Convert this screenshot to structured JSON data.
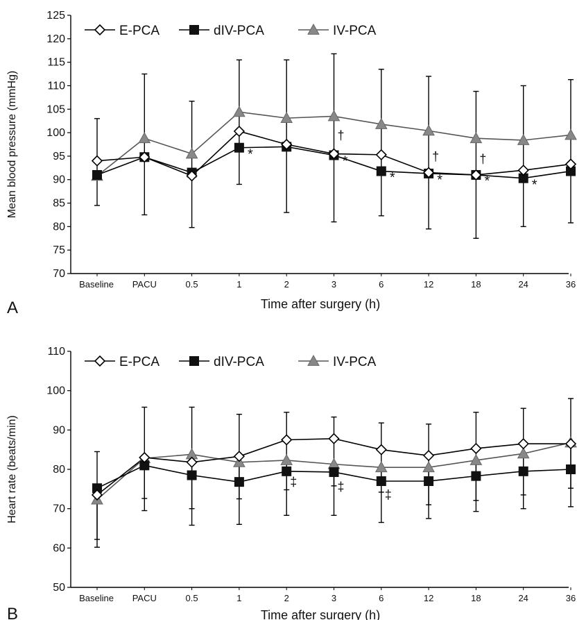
{
  "chart_data": [
    {
      "panel_label": "A",
      "type": "line",
      "xlabel": "Time after surgery (h)",
      "ylabel": "Mean blood pressure (mmHg)",
      "categories": [
        "Baseline",
        "PACU",
        "0.5",
        "1",
        "2",
        "3",
        "6",
        "12",
        "18",
        "24",
        "36"
      ],
      "ylim": [
        70,
        125
      ],
      "yticks": [
        70,
        75,
        80,
        85,
        90,
        95,
        100,
        105,
        110,
        115,
        120,
        125
      ],
      "legend_position": "top-left",
      "series": [
        {
          "name": "E-PCA",
          "marker": "diamond-open",
          "color": "#000000",
          "values": [
            94,
            94.8,
            90.8,
            100.3,
            97.5,
            95.5,
            95.3,
            91.5,
            91,
            92,
            93.3
          ]
        },
        {
          "name": "dIV-PCA",
          "marker": "square-filled",
          "color": "#000000",
          "values": [
            91,
            94.8,
            91.5,
            96.8,
            97,
            95.2,
            91.8,
            91.3,
            91,
            90.3,
            91.8
          ],
          "error_low": [
            84.5,
            82.5,
            79.8,
            89,
            83,
            81,
            82.3,
            79.5,
            77.5,
            80,
            80.8
          ],
          "error_high": [
            103,
            112.5,
            106.7,
            115.5,
            115.5,
            116.8,
            113.5,
            112,
            108.8,
            110,
            111.3
          ]
        },
        {
          "name": "IV-PCA",
          "marker": "triangle-filled",
          "color": "#888888",
          "values": [
            90.8,
            98.8,
            95.5,
            104.4,
            103.1,
            103.5,
            101.8,
            100.4,
            98.8,
            98.4,
            99.5
          ]
        }
      ],
      "annotations": [
        {
          "text": "*",
          "x": "1",
          "y": 94.5
        },
        {
          "text": "*",
          "x": "3",
          "y": 93
        },
        {
          "text": "*",
          "x": "6",
          "y": 89.5
        },
        {
          "text": "*",
          "x": "12",
          "y": 89
        },
        {
          "text": "*",
          "x": "18",
          "y": 88.8
        },
        {
          "text": "*",
          "x": "24",
          "y": 88
        },
        {
          "text": "*",
          "x": "36",
          "y": 89.5
        },
        {
          "text": "†",
          "x": "3",
          "y": 98.5
        },
        {
          "text": "†",
          "x": "12",
          "y": 94
        },
        {
          "text": "†",
          "x": "18",
          "y": 93.5
        }
      ]
    },
    {
      "panel_label": "B",
      "type": "line",
      "xlabel": "Time after surgery (h)",
      "ylabel": "Heart rate (beats/min)",
      "categories": [
        "Baseline",
        "PACU",
        "0.5",
        "1",
        "2",
        "3",
        "6",
        "12",
        "18",
        "24",
        "36"
      ],
      "ylim": [
        50,
        110
      ],
      "yticks": [
        50,
        60,
        70,
        80,
        90,
        100,
        110
      ],
      "legend_position": "top-left",
      "series": [
        {
          "name": "E-PCA",
          "marker": "diamond-open",
          "color": "#000000",
          "values": [
            73.5,
            83,
            81.8,
            83.3,
            87.5,
            87.8,
            85,
            83.5,
            85.3,
            86.5,
            86.5
          ]
        },
        {
          "name": "dIV-PCA",
          "marker": "square-filled",
          "color": "#000000",
          "values": [
            75.2,
            81,
            78.5,
            76.8,
            79.5,
            79.3,
            77,
            77,
            78.3,
            79.5,
            80
          ],
          "error_low": [
            60.2,
            69.5,
            65.8,
            66,
            68.3,
            68.3,
            66.5,
            67.5,
            69.3,
            70,
            70.5
          ],
          "error_high": [
            84.5,
            95.8,
            95.8,
            94,
            94.5,
            93.3,
            91.8,
            91.5,
            94.5,
            95.5,
            98
          ]
        },
        {
          "name": "IV-PCA",
          "marker": "triangle-filled",
          "color": "#888888",
          "values": [
            72.3,
            82.8,
            83.8,
            81.8,
            82.3,
            81.3,
            80.5,
            80.5,
            82.3,
            84,
            86.8
          ],
          "error_low": [
            62.2,
            72.6,
            70,
            72.5,
            74.8,
            75.8,
            74.2,
            71,
            72.1,
            73.5,
            75.2
          ]
        }
      ],
      "annotations": [
        {
          "text": "‡",
          "x": "2",
          "y": 75.8
        },
        {
          "text": "‡",
          "x": "3",
          "y": 74.5
        },
        {
          "text": "‡",
          "x": "6",
          "y": 72.5
        }
      ]
    }
  ]
}
